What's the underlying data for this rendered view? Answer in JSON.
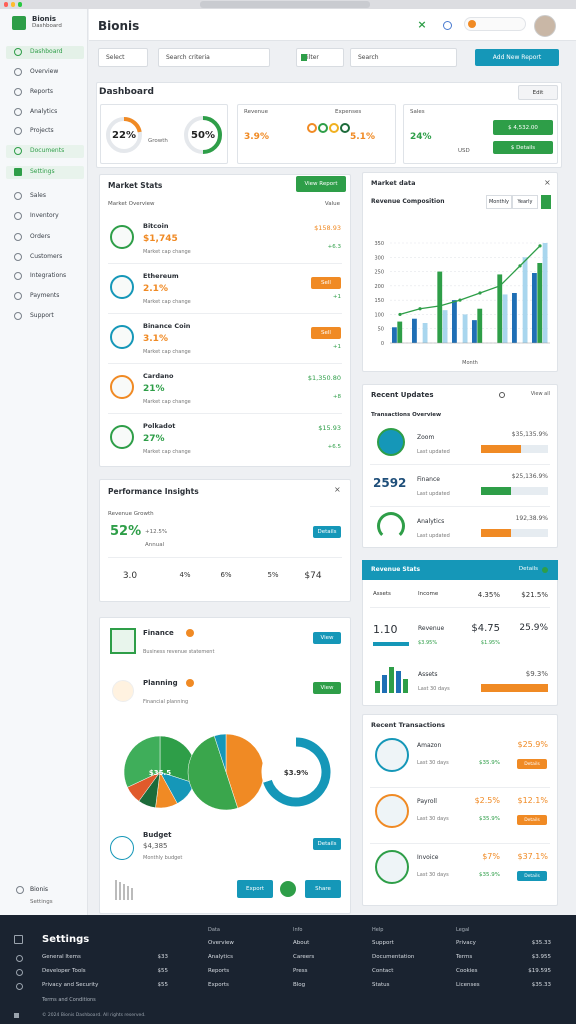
{
  "header": {
    "brand": "Bionis",
    "brand_sub": "Dashboard",
    "title": "Bionis"
  },
  "nav": [
    "Dashboard",
    "Overview",
    "Reports",
    "Analytics",
    "Projects",
    "Documents",
    "Settings",
    "Sales",
    "Inventory",
    "Orders",
    "Customers",
    "Integrations",
    "Payments",
    "Support"
  ],
  "sidebar_footer": {
    "name": "Bionis",
    "role": "Settings"
  },
  "toolbar": {
    "select": "Select",
    "search": "Search criteria",
    "filter": "Filter",
    "search_btn": "Search",
    "action": "Add New Report"
  },
  "overview": {
    "title": "Dashboard",
    "button": "Edit",
    "gauges": {
      "values": [
        22,
        50
      ],
      "value_labels": [
        "22%",
        "50%"
      ],
      "colors": [
        "#f08a24",
        "#2e9e48"
      ]
    },
    "gauge_caption": "Growth",
    "card2": {
      "title": "Revenue",
      "title2": "Expenses",
      "left": "3.9%",
      "right": "5.1%"
    },
    "card3": {
      "title": "Sales",
      "value": "24%",
      "unit": "USD",
      "btn1": "$ 4,532.00",
      "btn2": "$ Details"
    }
  },
  "market": {
    "title": "Market Stats",
    "button": "View Report",
    "col1": "Market Overview",
    "col2": "Value",
    "rows": [
      {
        "name": "Bitcoin",
        "pct": "$1,745",
        "color": "#f08a24",
        "icon": "#2e9e48",
        "sub": "Market cap change",
        "right": "$158.93",
        "note": "+6.3"
      },
      {
        "name": "Ethereum",
        "pct": "2.1%",
        "color": "#f08a24",
        "icon": "#1597b8",
        "sub": "Market cap change",
        "tag": "Sell",
        "note": "+1"
      },
      {
        "name": "Binance Coin",
        "pct": "3.1%",
        "color": "#f08a24",
        "icon": "#1597b8",
        "sub": "Market cap change",
        "tag": "Sell",
        "note": "+1"
      },
      {
        "name": "Cardano",
        "pct": "21%",
        "color": "#2e9e48",
        "icon": "#f08a24",
        "sub": "Market cap change",
        "right": "$1,350.80",
        "note": "+8"
      },
      {
        "name": "Polkadot",
        "pct": "27%",
        "color": "#2e9e48",
        "icon": "#2e9e48",
        "sub": "Market cap change",
        "right": "$15.93",
        "note": "+6.5"
      }
    ]
  },
  "performance": {
    "title": "Performance Insights",
    "subtitle": "Revenue Growth",
    "value": "52%",
    "value_sub": "+12.5%",
    "caption": "Annual",
    "button": "Details",
    "stats": [
      "3.0",
      "4%",
      "6%",
      "5%",
      "$74"
    ]
  },
  "planning": {
    "rows": [
      {
        "title": "Finance",
        "sub": "Business revenue statement",
        "button": "View",
        "button_color": "#1597b8"
      },
      {
        "title": "Planning",
        "sub": "Financial planning",
        "button": "View",
        "button_color": "#2e9e48"
      }
    ],
    "pies": [
      {
        "type": "pie",
        "values": [
          30,
          12,
          10,
          8,
          8,
          32
        ],
        "colors": [
          "#2e9e48",
          "#1597b8",
          "#f08a24",
          "#1d6b3a",
          "#e05a2b",
          "#3fae5a"
        ],
        "label": "$35.5"
      },
      {
        "type": "pie",
        "values": [
          45,
          50,
          5
        ],
        "colors": [
          "#f08a24",
          "#3aa64c",
          "#1597b8"
        ]
      },
      {
        "type": "donut",
        "values": [
          70,
          30
        ],
        "colors": [
          "#1597b8",
          "#ffffff"
        ],
        "label": "$3.9%"
      }
    ],
    "budget": {
      "title": "Budget",
      "value": "$4,385",
      "sub": "Monthly budget",
      "button": "Details"
    },
    "buttons": [
      "Export",
      "Share"
    ]
  },
  "market_chart": {
    "type": "bar",
    "title": "Market data",
    "subtitle": "Revenue Composition",
    "tabs": [
      "Monthly",
      "Yearly"
    ],
    "xlabel": "Month",
    "ylim": [
      0,
      350
    ],
    "yticks": [
      0,
      50,
      100,
      150,
      200,
      250,
      300,
      350
    ],
    "grid": true,
    "categories": [
      null,
      null,
      null,
      null,
      null,
      null,
      null,
      null
    ],
    "series": [
      {
        "color": "#1f6fb5",
        "values": [
          55,
          85,
          null,
          150,
          80,
          null,
          175,
          245
        ]
      },
      {
        "color": "#2e9e48",
        "values": [
          75,
          null,
          250,
          null,
          120,
          240,
          null,
          280
        ]
      },
      {
        "color": "#a9d6ee",
        "values": [
          null,
          70,
          115,
          100,
          null,
          170,
          300,
          350
        ]
      },
      {
        "type": "line",
        "color": "#2e9e48",
        "values": [
          100,
          120,
          130,
          150,
          175,
          200,
          270,
          340
        ]
      }
    ]
  },
  "updates": {
    "title": "Recent Updates",
    "link": "View all",
    "subtitle": "Transactions Overview",
    "rows": [
      {
        "name": "Zoom",
        "sub": "Last updated",
        "amount": "$35,135.9%",
        "progress": 60,
        "color": "#f08a24"
      },
      {
        "name": "Finance",
        "big": "2592",
        "sub": "Last updated",
        "amount": "$25,136.9%",
        "progress": 45,
        "color": "#2e9e48"
      },
      {
        "name": "Analytics",
        "sub": "Last updated",
        "amount": "192,38.9%",
        "progress": 45,
        "color": "#f08a24"
      }
    ]
  },
  "revenue": {
    "title": "Revenue Stats",
    "link": "Details",
    "cols": [
      "Assets",
      "Income",
      "4.35%",
      "$21.5%"
    ],
    "big": "1.10",
    "row": {
      "name": "Revenue",
      "a": "$4.75",
      "b": "25.9%",
      "sub": "$3.95%",
      "sub2": "$1.95%"
    },
    "mini_bars": {
      "values": [
        12,
        18,
        26,
        22,
        14
      ],
      "colors": [
        "#2e9e48",
        "#1f6fb5",
        "#2e9e48",
        "#1f6fb5",
        "#2e9e48"
      ]
    },
    "row2": {
      "name": "Assets",
      "sub": "Last 30 days",
      "amount": "$9.3%",
      "progress": 100,
      "color": "#f08a24"
    }
  },
  "transactions": {
    "title": "Recent Transactions",
    "rows": [
      {
        "name": "Amazon",
        "pct": "$25.9%",
        "sub": "Last 30 days",
        "status": "$35.9%",
        "button": "Details",
        "button_color": "#f08a24",
        "icon": "#1597b8"
      },
      {
        "name": "Payroll",
        "amount": "$2.5%",
        "pct": "$12.1%",
        "sub": "Last 30 days",
        "status": "$35.9%",
        "button": "Details",
        "button_color": "#f08a24",
        "icon": "#f08a24"
      },
      {
        "name": "Invoice",
        "amount": "$7%",
        "pct": "$37.1%",
        "sub": "Last 30 days",
        "status": "$35.9%",
        "button": "Details",
        "button_color": "#1597b8",
        "icon": "#2e9e48"
      }
    ]
  },
  "footer": {
    "title": "Settings",
    "items": [
      {
        "label": "General Items",
        "value": "$33"
      },
      {
        "label": "Developer Tools",
        "value": "$55"
      },
      {
        "label": "Privacy and Security",
        "value": "$55"
      }
    ],
    "note": "Terms and Conditions",
    "columns": [
      {
        "heading": "Data",
        "items": [
          "Overview",
          "Analytics",
          "Reports",
          "Exports"
        ]
      },
      {
        "heading": "Info",
        "items": [
          "About",
          "Careers",
          "Press",
          "Blog"
        ]
      },
      {
        "heading": "Help",
        "items": [
          "Support",
          "Documentation",
          "Contact",
          "Status"
        ]
      },
      {
        "heading": "Legal",
        "items": [
          "Privacy",
          "Terms",
          "Cookies",
          "Licenses"
        ],
        "values": [
          "$35.33",
          "$3.955",
          "$19.595",
          "$35.33"
        ]
      }
    ],
    "copyright": "© 2024 Bionis Dashboard. All rights reserved."
  }
}
